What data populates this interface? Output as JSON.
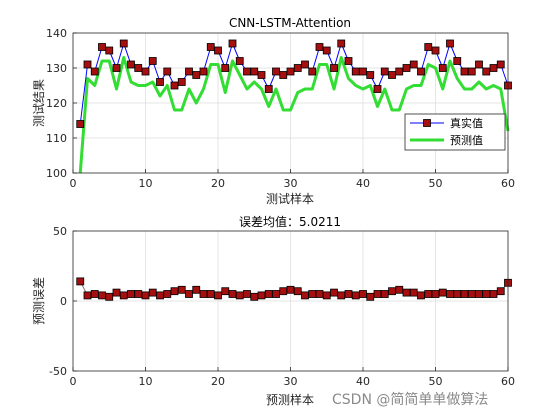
{
  "chart_data": [
    {
      "type": "line",
      "title": "CNN-LSTM-Attention",
      "xlabel": "测试样本",
      "ylabel": "测试结果",
      "xlim": [
        0,
        60
      ],
      "ylim": [
        100,
        140
      ],
      "xticks": [
        0,
        10,
        20,
        30,
        40,
        50,
        60
      ],
      "yticks": [
        100,
        110,
        120,
        130,
        140
      ],
      "grid": true,
      "legend_position": "lower-right",
      "x": [
        1,
        2,
        3,
        4,
        5,
        6,
        7,
        8,
        9,
        10,
        11,
        12,
        13,
        14,
        15,
        16,
        17,
        18,
        19,
        20,
        21,
        22,
        23,
        24,
        25,
        26,
        27,
        28,
        29,
        30,
        31,
        32,
        33,
        34,
        35,
        36,
        37,
        38,
        39,
        40,
        41,
        42,
        43,
        44,
        45,
        46,
        47,
        48,
        49,
        50,
        51,
        52,
        53,
        54,
        55,
        56,
        57,
        58,
        59,
        60
      ],
      "series": [
        {
          "name": "真实值",
          "color": "#0000ff",
          "marker": "square",
          "marker_color": "#a50f0f",
          "values": [
            114,
            131,
            129,
            136,
            135,
            130,
            137,
            131,
            130,
            129,
            132,
            126,
            129,
            125,
            126,
            129,
            128,
            129,
            136,
            135,
            130,
            137,
            132,
            129,
            129,
            128,
            124,
            129,
            128,
            129,
            130,
            131,
            129,
            136,
            135,
            130,
            137,
            132,
            129,
            129,
            128,
            124,
            129,
            128,
            129,
            130,
            131,
            129,
            136,
            135,
            130,
            137,
            132,
            129,
            129,
            131,
            129,
            130,
            131,
            125
          ]
        },
        {
          "name": "预测值",
          "color": "#33dd33",
          "values": [
            100,
            127,
            125,
            132,
            132,
            124,
            133,
            126,
            125,
            125,
            126,
            122,
            125,
            118,
            118,
            124,
            120,
            124,
            131,
            131,
            123,
            132,
            128,
            124,
            126,
            124,
            119,
            124,
            118,
            118,
            123,
            124,
            124,
            131,
            131,
            124,
            133,
            127,
            125,
            124,
            125,
            119,
            124,
            118,
            118,
            124,
            125,
            125,
            131,
            130,
            124,
            132,
            127,
            124,
            124,
            126,
            124,
            125,
            124,
            112
          ]
        }
      ]
    },
    {
      "type": "line",
      "title": "误差均值：5.0211",
      "xlabel": "预测样本",
      "ylabel": "预测误差",
      "xlim": [
        0,
        60
      ],
      "ylim": [
        -50,
        50
      ],
      "xticks": [
        0,
        10,
        20,
        30,
        40,
        50,
        60
      ],
      "yticks": [
        -50,
        0,
        50
      ],
      "grid": true,
      "x": [
        1,
        2,
        3,
        4,
        5,
        6,
        7,
        8,
        9,
        10,
        11,
        12,
        13,
        14,
        15,
        16,
        17,
        18,
        19,
        20,
        21,
        22,
        23,
        24,
        25,
        26,
        27,
        28,
        29,
        30,
        31,
        32,
        33,
        34,
        35,
        36,
        37,
        38,
        39,
        40,
        41,
        42,
        43,
        44,
        45,
        46,
        47,
        48,
        49,
        50,
        51,
        52,
        53,
        54,
        55,
        56,
        57,
        58,
        59,
        60
      ],
      "series": [
        {
          "color": "#7a7a7a",
          "marker": "square",
          "marker_color": "#a50f0f",
          "values": [
            14,
            4,
            5,
            4,
            3,
            6,
            4,
            5,
            5,
            4,
            6,
            4,
            5,
            7,
            8,
            5,
            8,
            5,
            5,
            4,
            7,
            5,
            4,
            5,
            3,
            4,
            5,
            5,
            7,
            8,
            7,
            4,
            5,
            5,
            4,
            6,
            4,
            5,
            4,
            5,
            3,
            5,
            5,
            7,
            8,
            6,
            6,
            4,
            5,
            5,
            6,
            5,
            5,
            5,
            5,
            5,
            5,
            5,
            7,
            13
          ]
        }
      ]
    }
  ],
  "watermark": "CSDN @简简单单做算法"
}
